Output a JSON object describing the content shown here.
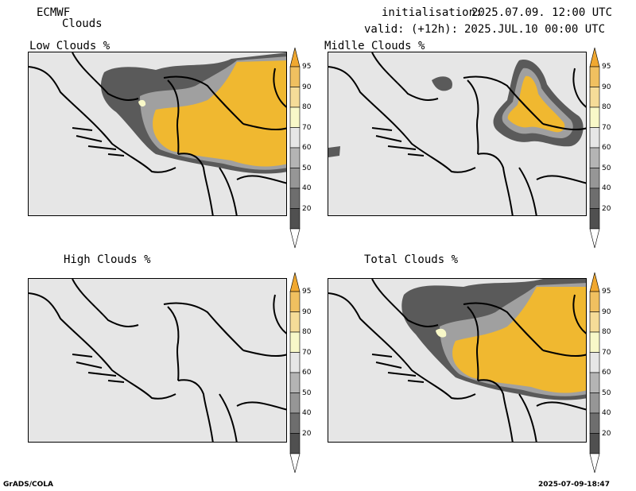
{
  "header": {
    "model": "ECMWF",
    "product": "Clouds",
    "init_label": "initialisation:",
    "init_value": "2025.07.09. 12:00 UTC",
    "valid_label": "valid: (+12h):",
    "valid_value": "2025.JUL.10 00:00 UTC"
  },
  "footer": {
    "software": "GrADS/COLA",
    "timestamp": "2025-07-09-18:47"
  },
  "panels": [
    {
      "id": "low",
      "title": "Low Clouds %"
    },
    {
      "id": "middle",
      "title": "Midlle Clouds %"
    },
    {
      "id": "high",
      "title": "High Clouds %"
    },
    {
      "id": "total",
      "title": "Total Clouds %"
    }
  ],
  "colorbar": {
    "levels": [
      "95",
      "90",
      "80",
      "70",
      "60",
      "50",
      "40",
      "20"
    ],
    "colors": [
      "#f0a830",
      "#f0c060",
      "#f5dc98",
      "#f8f8c8",
      "#e6e6e6",
      "#b4b4b4",
      "#969696",
      "#6e6e6e",
      "#505050",
      "#ffffff"
    ]
  },
  "colors": {
    "background": "#e6e6e6",
    "cloud_dark": "#5a5a5a",
    "cloud_mid": "#a0a0a0",
    "cloud_light": "#f8f8c8",
    "cloud_core": "#f0b830",
    "border": "#000000"
  }
}
